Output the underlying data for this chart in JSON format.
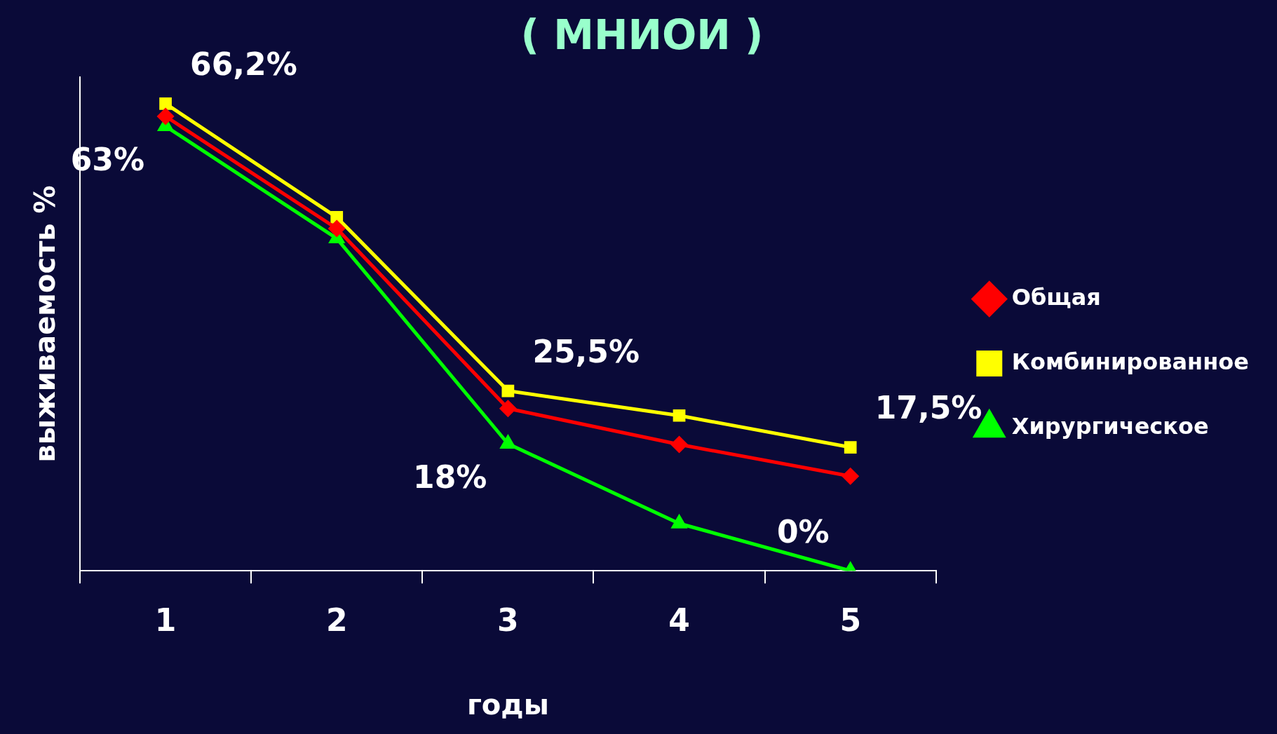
{
  "chart_data": {
    "type": "line",
    "title": "( МНИОИ )",
    "xlabel": "годы",
    "ylabel": "выживаемость %",
    "categories": [
      "1",
      "2",
      "3",
      "4",
      "5"
    ],
    "ylim": [
      0,
      70
    ],
    "grid": false,
    "legend": "right",
    "line_style": "solid",
    "series": [
      {
        "name": "Общая",
        "color": "#ff0000",
        "marker": "diamond",
        "values": [
          64.4,
          48.5,
          23.0,
          17.9,
          13.4
        ]
      },
      {
        "name": "Комбинированное",
        "color": "#ffff00",
        "marker": "square",
        "values": [
          66.2,
          50.1,
          25.5,
          22.0,
          17.5
        ],
        "value_labels": [
          "66,2%",
          null,
          "25,5%",
          null,
          "17,5%"
        ]
      },
      {
        "name": "Хирургическое",
        "color": "#00ff00",
        "marker": "triangle",
        "values": [
          63,
          47.1,
          18,
          6.7,
          0
        ],
        "value_labels": [
          "63%",
          null,
          "18%",
          null,
          "0%"
        ]
      }
    ]
  }
}
